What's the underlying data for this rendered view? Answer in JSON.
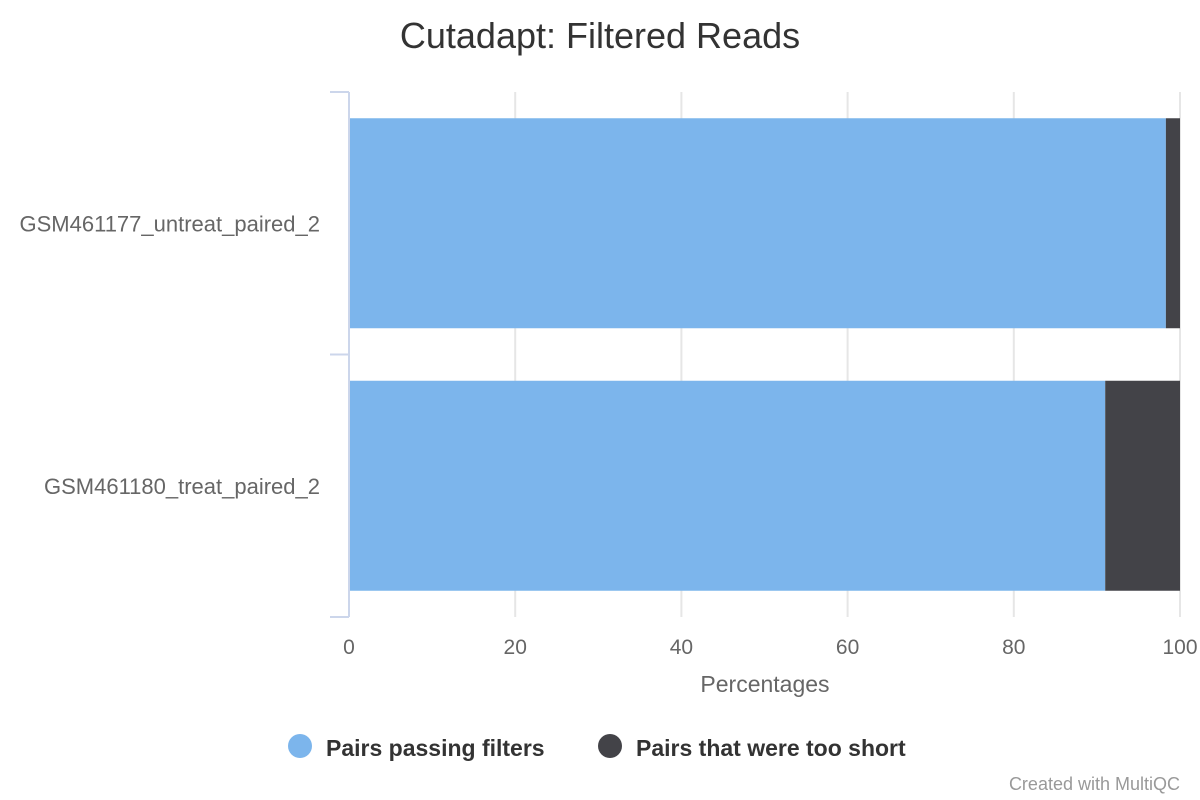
{
  "chart_data": {
    "type": "bar",
    "orientation": "horizontal",
    "stacked": true,
    "title": "Cutadapt: Filtered Reads",
    "categories": [
      "GSM461177_untreat_paired_2",
      "GSM461180_treat_paired_2"
    ],
    "series": [
      {
        "name": "Pairs passing filters",
        "color": "#7cb5ec",
        "values": [
          98.3,
          91.0
        ]
      },
      {
        "name": "Pairs that were too short",
        "color": "#434348",
        "values": [
          1.7,
          9.0
        ]
      }
    ],
    "xlabel": "Percentages",
    "xlim": [
      0,
      100
    ],
    "xticks": [
      "0",
      "20",
      "40",
      "60",
      "80",
      "100"
    ],
    "grid": true,
    "legend_position": "bottom-center"
  },
  "credits": "Created with MultiQC"
}
